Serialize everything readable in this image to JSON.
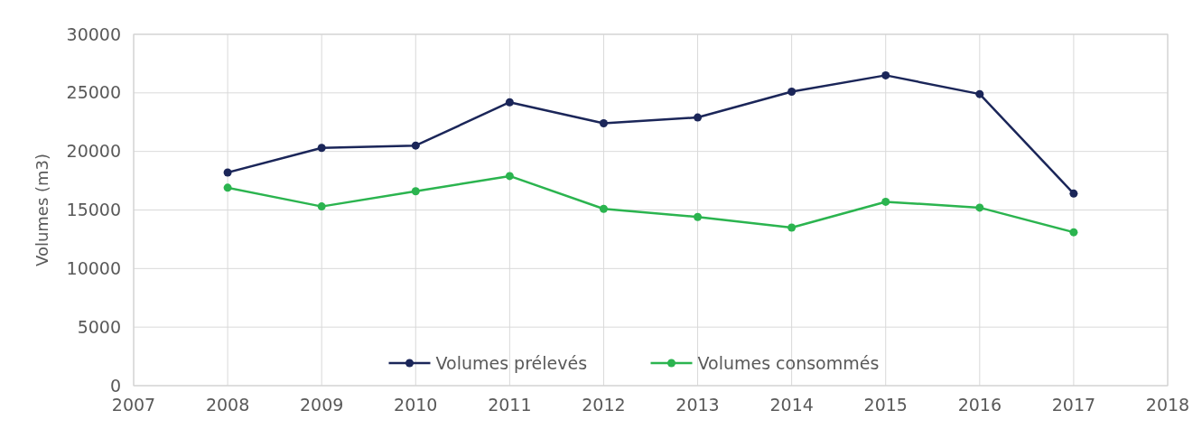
{
  "chart_data": {
    "type": "line",
    "ylabel": "Volumes (m3)",
    "x": [
      2008,
      2009,
      2010,
      2011,
      2012,
      2013,
      2014,
      2015,
      2016,
      2017
    ],
    "series": [
      {
        "name": "Volumes prélevés",
        "color": "#1b2659",
        "values": [
          18200,
          20300,
          20500,
          24200,
          22400,
          22900,
          25100,
          26500,
          24900,
          16400
        ]
      },
      {
        "name": "Volumes consommés",
        "color": "#2bb44f",
        "values": [
          16900,
          15300,
          16600,
          17900,
          15100,
          14400,
          13500,
          15700,
          15200,
          13100
        ]
      }
    ],
    "xlim": [
      2007,
      2018
    ],
    "xticks": [
      2007,
      2008,
      2009,
      2010,
      2011,
      2012,
      2013,
      2014,
      2015,
      2016,
      2017,
      2018
    ],
    "ylim": [
      0,
      30000
    ],
    "yticks": [
      0,
      5000,
      10000,
      15000,
      20000,
      25000,
      30000
    ],
    "grid": true,
    "legend": "bottom",
    "marker": "circle",
    "line_style": "solid"
  }
}
